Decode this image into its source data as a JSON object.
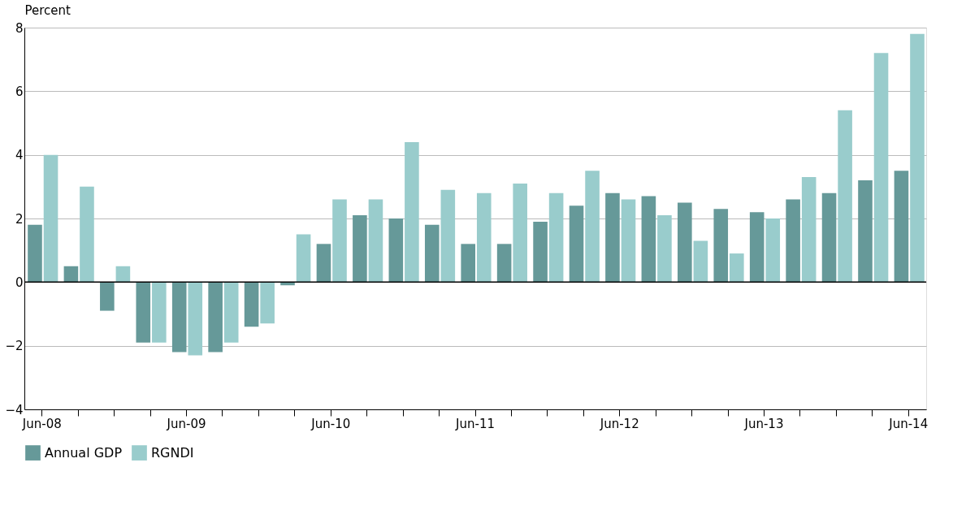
{
  "chart_data": {
    "type": "bar",
    "ylabel": "Percent",
    "categories": [
      "Jun-08",
      null,
      null,
      null,
      "Jun-09",
      null,
      null,
      null,
      "Jun-10",
      null,
      null,
      null,
      "Jun-11",
      null,
      null,
      null,
      "Jun-12",
      null,
      null,
      null,
      "Jun-13",
      null,
      null,
      null,
      "Jun-14"
    ],
    "series": [
      {
        "name": "Annual GDP",
        "color": "#669999",
        "values": [
          1.8,
          0.5,
          -0.9,
          -1.9,
          -2.2,
          -2.2,
          -1.4,
          -0.1,
          1.2,
          2.1,
          2.0,
          1.8,
          1.2,
          1.2,
          1.9,
          2.4,
          2.8,
          2.7,
          2.5,
          2.3,
          2.2,
          2.6,
          2.8,
          3.2,
          3.5
        ]
      },
      {
        "name": "RGNDI",
        "color": "#99cccc",
        "values": [
          4.0,
          3.0,
          0.5,
          -1.9,
          -2.3,
          -1.9,
          -1.3,
          1.5,
          2.6,
          2.6,
          4.4,
          2.9,
          2.8,
          3.1,
          2.8,
          3.5,
          2.6,
          2.1,
          1.3,
          0.9,
          2.0,
          3.3,
          5.4,
          7.2,
          7.8
        ]
      }
    ],
    "ylim": [
      -4,
      8
    ],
    "yticks": [
      -4,
      -2,
      0,
      2,
      4,
      6,
      8
    ],
    "grid": "y",
    "legend": "bottom",
    "ref_lines": [
      {
        "axis": "y",
        "value": 0,
        "color": "#000000"
      }
    ]
  }
}
